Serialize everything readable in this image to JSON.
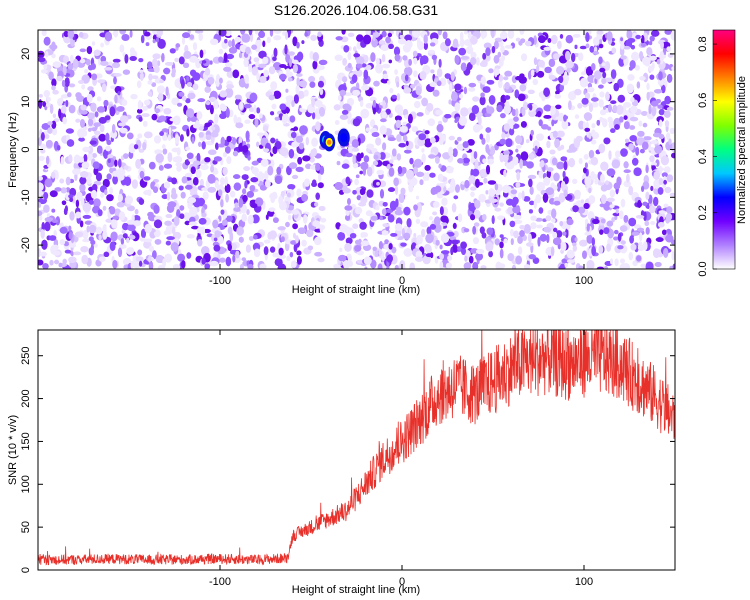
{
  "title": "S126.2026.104.06.58.G31",
  "chart_data": [
    {
      "type": "heatmap",
      "xlabel": "Height of straight line (km)",
      "ylabel": "Frequency (Hz)",
      "xlim": [
        -200,
        150
      ],
      "ylim": [
        -25,
        25
      ],
      "xticks": [
        -100,
        0,
        100
      ],
      "yticks": [
        -20,
        -10,
        0,
        10,
        20
      ],
      "colorbar": {
        "label": "Normalized spectral amplitude",
        "range": [
          0,
          0.85
        ],
        "ticks": [
          0,
          0.2,
          0.4,
          0.6,
          0.8
        ],
        "colors": [
          "#ffffff",
          "#b080ff",
          "#7000ff",
          "#0000ff",
          "#00c8ff",
          "#00ff80",
          "#80ff00",
          "#ffff00",
          "#ff8000",
          "#ff0000",
          "#ff0080"
        ]
      },
      "gap_x": [
        -42,
        -37
      ],
      "peaks": [
        {
          "x": -42,
          "y": 2,
          "value": 0.45
        },
        {
          "x": -40,
          "y": 1.5,
          "value": 0.75
        },
        {
          "x": -32,
          "y": 2.5,
          "value": 0.3
        }
      ]
    },
    {
      "type": "line",
      "xlabel": "Height of straight line (km)",
      "ylabel": "SNR (10 * v/v)",
      "xlim": [
        -200,
        150
      ],
      "ylim": [
        0,
        280
      ],
      "xticks": [
        -100,
        0,
        100
      ],
      "yticks": [
        0,
        50,
        100,
        150,
        200,
        250
      ],
      "color": "#e8302a",
      "series": [
        {
          "x": [
            -200,
            -180,
            -160,
            -140,
            -120,
            -100,
            -80,
            -70,
            -63,
            -60,
            -50,
            -40,
            -30,
            -20,
            -10,
            0,
            10,
            20,
            30,
            40,
            50,
            60,
            70,
            80,
            90,
            100,
            110,
            120,
            130,
            140,
            150
          ],
          "values": [
            12,
            12,
            13,
            12,
            12,
            13,
            12,
            13,
            14,
            40,
            50,
            60,
            70,
            100,
            130,
            150,
            175,
            205,
            215,
            205,
            220,
            235,
            245,
            248,
            240,
            245,
            248,
            240,
            220,
            200,
            175
          ]
        }
      ]
    }
  ]
}
